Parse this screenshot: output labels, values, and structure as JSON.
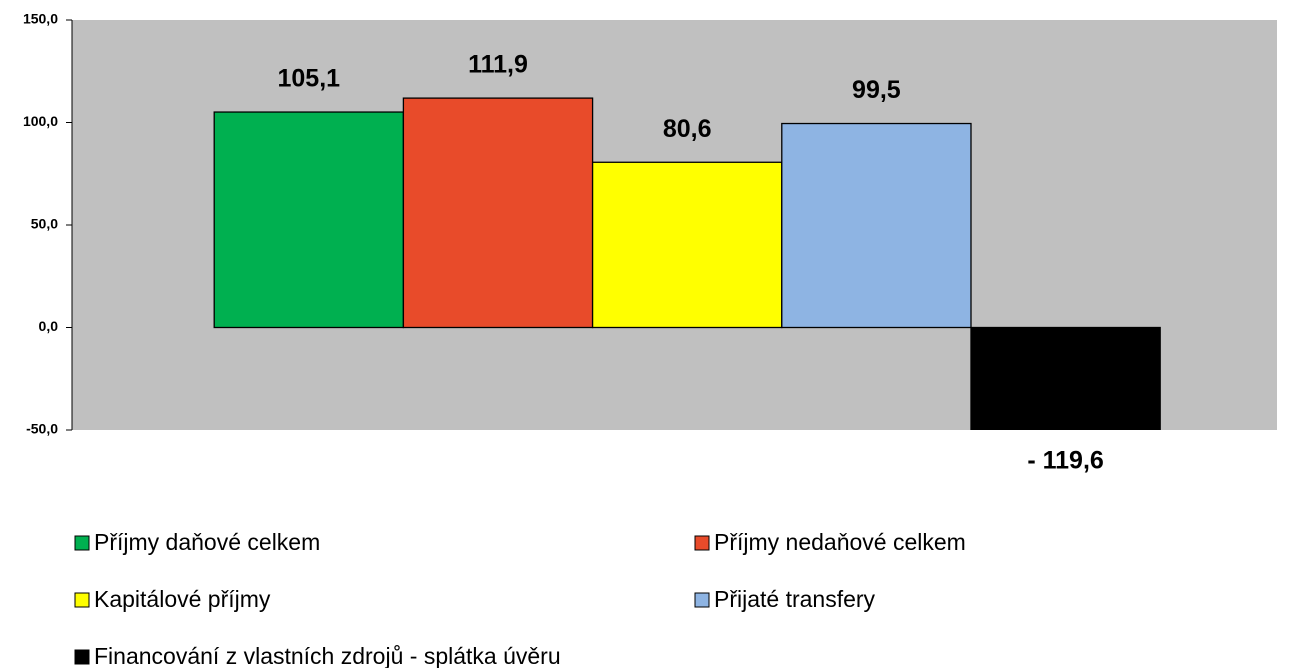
{
  "chart_data": {
    "type": "bar",
    "categories": [
      null
    ],
    "series": [
      {
        "name": "Příjmy daňové celkem",
        "color": "#00b050",
        "values": [
          105.1
        ],
        "value_labels": [
          "105,1"
        ]
      },
      {
        "name": "Příjmy nedaňové celkem",
        "color": "#e84b2a",
        "values": [
          111.9
        ],
        "value_labels": [
          "111,9"
        ]
      },
      {
        "name": "Kapitálové příjmy",
        "color": "#ffff00",
        "values": [
          80.6
        ],
        "value_labels": [
          "80,6"
        ]
      },
      {
        "name": "Přijaté transfery",
        "color": "#8eb4e3",
        "values": [
          99.5
        ],
        "value_labels": [
          "99,5"
        ]
      },
      {
        "name": "Financování z vlastních zdrojů - splátka úvěru",
        "color": "#000000",
        "values": [
          -119.6
        ],
        "value_labels": [
          "- 119,6"
        ]
      }
    ],
    "ylim": [
      -50,
      150
    ],
    "yticks": [
      {
        "value": -50,
        "label": "-50,0"
      },
      {
        "value": 0,
        "label": "0,0"
      },
      {
        "value": 50,
        "label": "50,0"
      },
      {
        "value": 100,
        "label": "100,0"
      },
      {
        "value": 150,
        "label": "150,0"
      }
    ],
    "grid": false,
    "legend": "bottom"
  }
}
